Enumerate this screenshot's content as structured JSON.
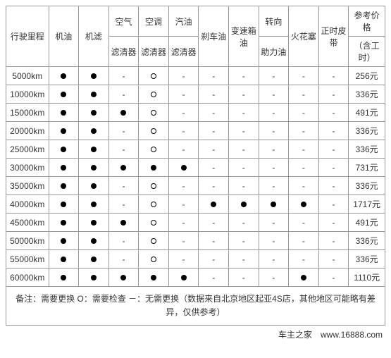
{
  "table": {
    "headers": {
      "mileage": "行驶里程",
      "oil": "机油",
      "oil_filter": "机滤",
      "air_top": "空气",
      "air_sub": "滤清器",
      "ac_top": "空调",
      "ac_sub": "滤清器",
      "fuel_top": "汽油",
      "fuel_sub": "滤清器",
      "brake": "刹车油",
      "trans": "变速箱油",
      "steer_top": "转向",
      "steer_sub": "助力油",
      "spark": "火花塞",
      "belt": "正时皮带",
      "price_top": "参考价格",
      "price_sub": "（含工时）"
    },
    "rows": [
      {
        "mileage": "5000km",
        "oil": "dot",
        "oil_filter": "dot",
        "air": "-",
        "ac": "O",
        "fuel": "-",
        "brake": "-",
        "trans": "-",
        "steer": "-",
        "spark": "-",
        "belt": "-",
        "price": "256元"
      },
      {
        "mileage": "10000km",
        "oil": "dot",
        "oil_filter": "dot",
        "air": "-",
        "ac": "O",
        "fuel": "-",
        "brake": "-",
        "trans": "-",
        "steer": "-",
        "spark": "-",
        "belt": "-",
        "price": "336元"
      },
      {
        "mileage": "15000km",
        "oil": "dot",
        "oil_filter": "dot",
        "air": "dot",
        "ac": "O",
        "fuel": "-",
        "brake": "-",
        "trans": "-",
        "steer": "-",
        "spark": "-",
        "belt": "-",
        "price": "491元"
      },
      {
        "mileage": "20000km",
        "oil": "dot",
        "oil_filter": "dot",
        "air": "-",
        "ac": "O",
        "fuel": "-",
        "brake": "-",
        "trans": "-",
        "steer": "-",
        "spark": "-",
        "belt": "-",
        "price": "336元"
      },
      {
        "mileage": "25000km",
        "oil": "dot",
        "oil_filter": "dot",
        "air": "-",
        "ac": "O",
        "fuel": "-",
        "brake": "-",
        "trans": "-",
        "steer": "-",
        "spark": "-",
        "belt": "-",
        "price": "336元"
      },
      {
        "mileage": "30000km",
        "oil": "dot",
        "oil_filter": "dot",
        "air": "dot",
        "ac": "dot",
        "fuel": "dot",
        "brake": "-",
        "trans": "-",
        "steer": "-",
        "spark": "-",
        "belt": "-",
        "price": "731元"
      },
      {
        "mileage": "35000km",
        "oil": "dot",
        "oil_filter": "dot",
        "air": "-",
        "ac": "O",
        "fuel": "-",
        "brake": "-",
        "trans": "-",
        "steer": "-",
        "spark": "-",
        "belt": "-",
        "price": "336元"
      },
      {
        "mileage": "40000km",
        "oil": "dot",
        "oil_filter": "dot",
        "air": "-",
        "ac": "O",
        "fuel": "-",
        "brake": "dot",
        "trans": "dot",
        "steer": "dot",
        "spark": "dot",
        "belt": "-",
        "price": "1717元"
      },
      {
        "mileage": "45000km",
        "oil": "dot",
        "oil_filter": "dot",
        "air": "dot",
        "ac": "O",
        "fuel": "-",
        "brake": "-",
        "trans": "-",
        "steer": "-",
        "spark": "-",
        "belt": "-",
        "price": "491元"
      },
      {
        "mileage": "50000km",
        "oil": "dot",
        "oil_filter": "dot",
        "air": "-",
        "ac": "O",
        "fuel": "-",
        "brake": "-",
        "trans": "-",
        "steer": "-",
        "spark": "-",
        "belt": "-",
        "price": "336元"
      },
      {
        "mileage": "55000km",
        "oil": "dot",
        "oil_filter": "dot",
        "air": "-",
        "ac": "O",
        "fuel": "-",
        "brake": "-",
        "trans": "-",
        "steer": "-",
        "spark": "-",
        "belt": "-",
        "price": "336元"
      },
      {
        "mileage": "60000km",
        "oil": "dot",
        "oil_filter": "dot",
        "air": "dot",
        "ac": "dot",
        "fuel": "dot",
        "brake": "-",
        "trans": "-",
        "steer": "-",
        "spark": "dot",
        "belt": "-",
        "price": "1110元"
      }
    ],
    "footnote": "备注：需要更换 O：需要检查 －：无需更换（数据来自北京地区起亚4S店，其他地区可能略有差异，仅供参考）"
  },
  "credit": "车主之家　www.16888.com"
}
